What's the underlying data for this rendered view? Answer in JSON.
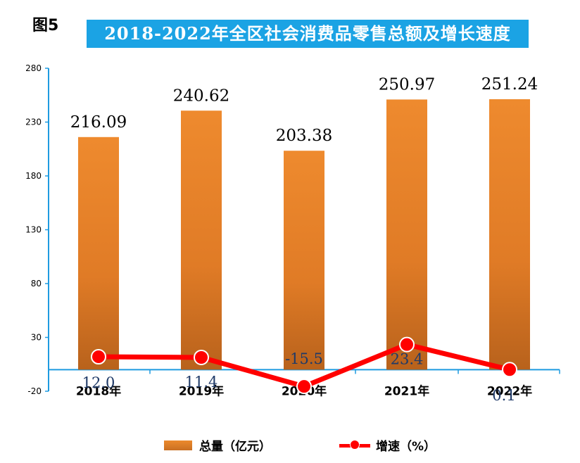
{
  "figure_label": "图5",
  "chart_data": {
    "type": "bar",
    "title": "2018-2022年全区社会消费品零售总额及增长速度",
    "categories": [
      "2018年",
      "2019年",
      "2020年",
      "2021年",
      "2022年"
    ],
    "series": [
      {
        "name": "总量（亿元）",
        "type": "bar",
        "values": [
          216.09,
          240.62,
          203.38,
          250.97,
          251.24
        ],
        "data_labels": [
          "216.09",
          "240.62",
          "203.38",
          "250.97",
          "251.24"
        ],
        "color": "#e07b26"
      },
      {
        "name": "增速（%）",
        "type": "line",
        "values": [
          12.0,
          11.4,
          -15.5,
          23.4,
          0.1
        ],
        "data_labels": [
          "12.0",
          "11.4",
          "-15.5",
          "23.4",
          "0.1"
        ],
        "color": "#ff0000"
      }
    ],
    "y_ticks": [
      -20,
      30,
      80,
      130,
      180,
      230,
      280
    ],
    "ylim": [
      -20,
      280
    ],
    "bar_baseline": 0,
    "legend_position": "bottom",
    "grid": false
  },
  "legend": {
    "bar_label": "总量（亿元）",
    "line_label": "增速（%）"
  }
}
